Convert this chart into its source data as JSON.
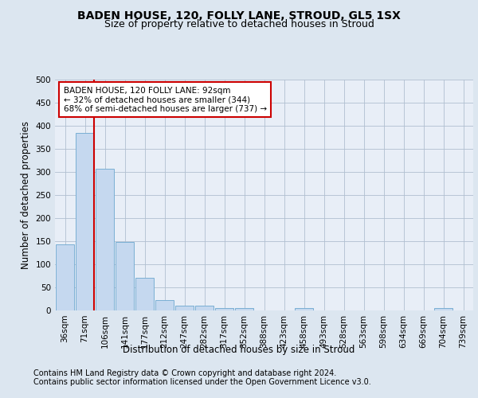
{
  "title": "BADEN HOUSE, 120, FOLLY LANE, STROUD, GL5 1SX",
  "subtitle": "Size of property relative to detached houses in Stroud",
  "xlabel": "Distribution of detached houses by size in Stroud",
  "ylabel": "Number of detached properties",
  "bar_labels": [
    "36sqm",
    "71sqm",
    "106sqm",
    "141sqm",
    "177sqm",
    "212sqm",
    "247sqm",
    "282sqm",
    "317sqm",
    "352sqm",
    "388sqm",
    "423sqm",
    "458sqm",
    "493sqm",
    "528sqm",
    "563sqm",
    "598sqm",
    "634sqm",
    "669sqm",
    "704sqm",
    "739sqm"
  ],
  "bar_values": [
    143,
    385,
    307,
    149,
    70,
    23,
    10,
    10,
    5,
    5,
    0,
    0,
    5,
    0,
    0,
    0,
    0,
    0,
    0,
    5,
    0
  ],
  "bar_color": "#c5d8ef",
  "bar_edge_color": "#7aafd4",
  "bg_color": "#dce6f0",
  "plot_bg_color": "#e8eef7",
  "grid_color": "#b0bfd0",
  "vline_color": "#cc0000",
  "annotation_title": "BADEN HOUSE, 120 FOLLY LANE: 92sqm",
  "annotation_line1": "← 32% of detached houses are smaller (344)",
  "annotation_line2": "68% of semi-detached houses are larger (737) →",
  "annotation_box_color": "#ffffff",
  "annotation_box_edge": "#cc0000",
  "footer1": "Contains HM Land Registry data © Crown copyright and database right 2024.",
  "footer2": "Contains public sector information licensed under the Open Government Licence v3.0.",
  "ylim": [
    0,
    500
  ],
  "yticks": [
    0,
    50,
    100,
    150,
    200,
    250,
    300,
    350,
    400,
    450,
    500
  ],
  "title_fontsize": 10,
  "subtitle_fontsize": 9,
  "axis_label_fontsize": 8.5,
  "tick_fontsize": 7.5,
  "footer_fontsize": 7,
  "annotation_fontsize": 7.5
}
